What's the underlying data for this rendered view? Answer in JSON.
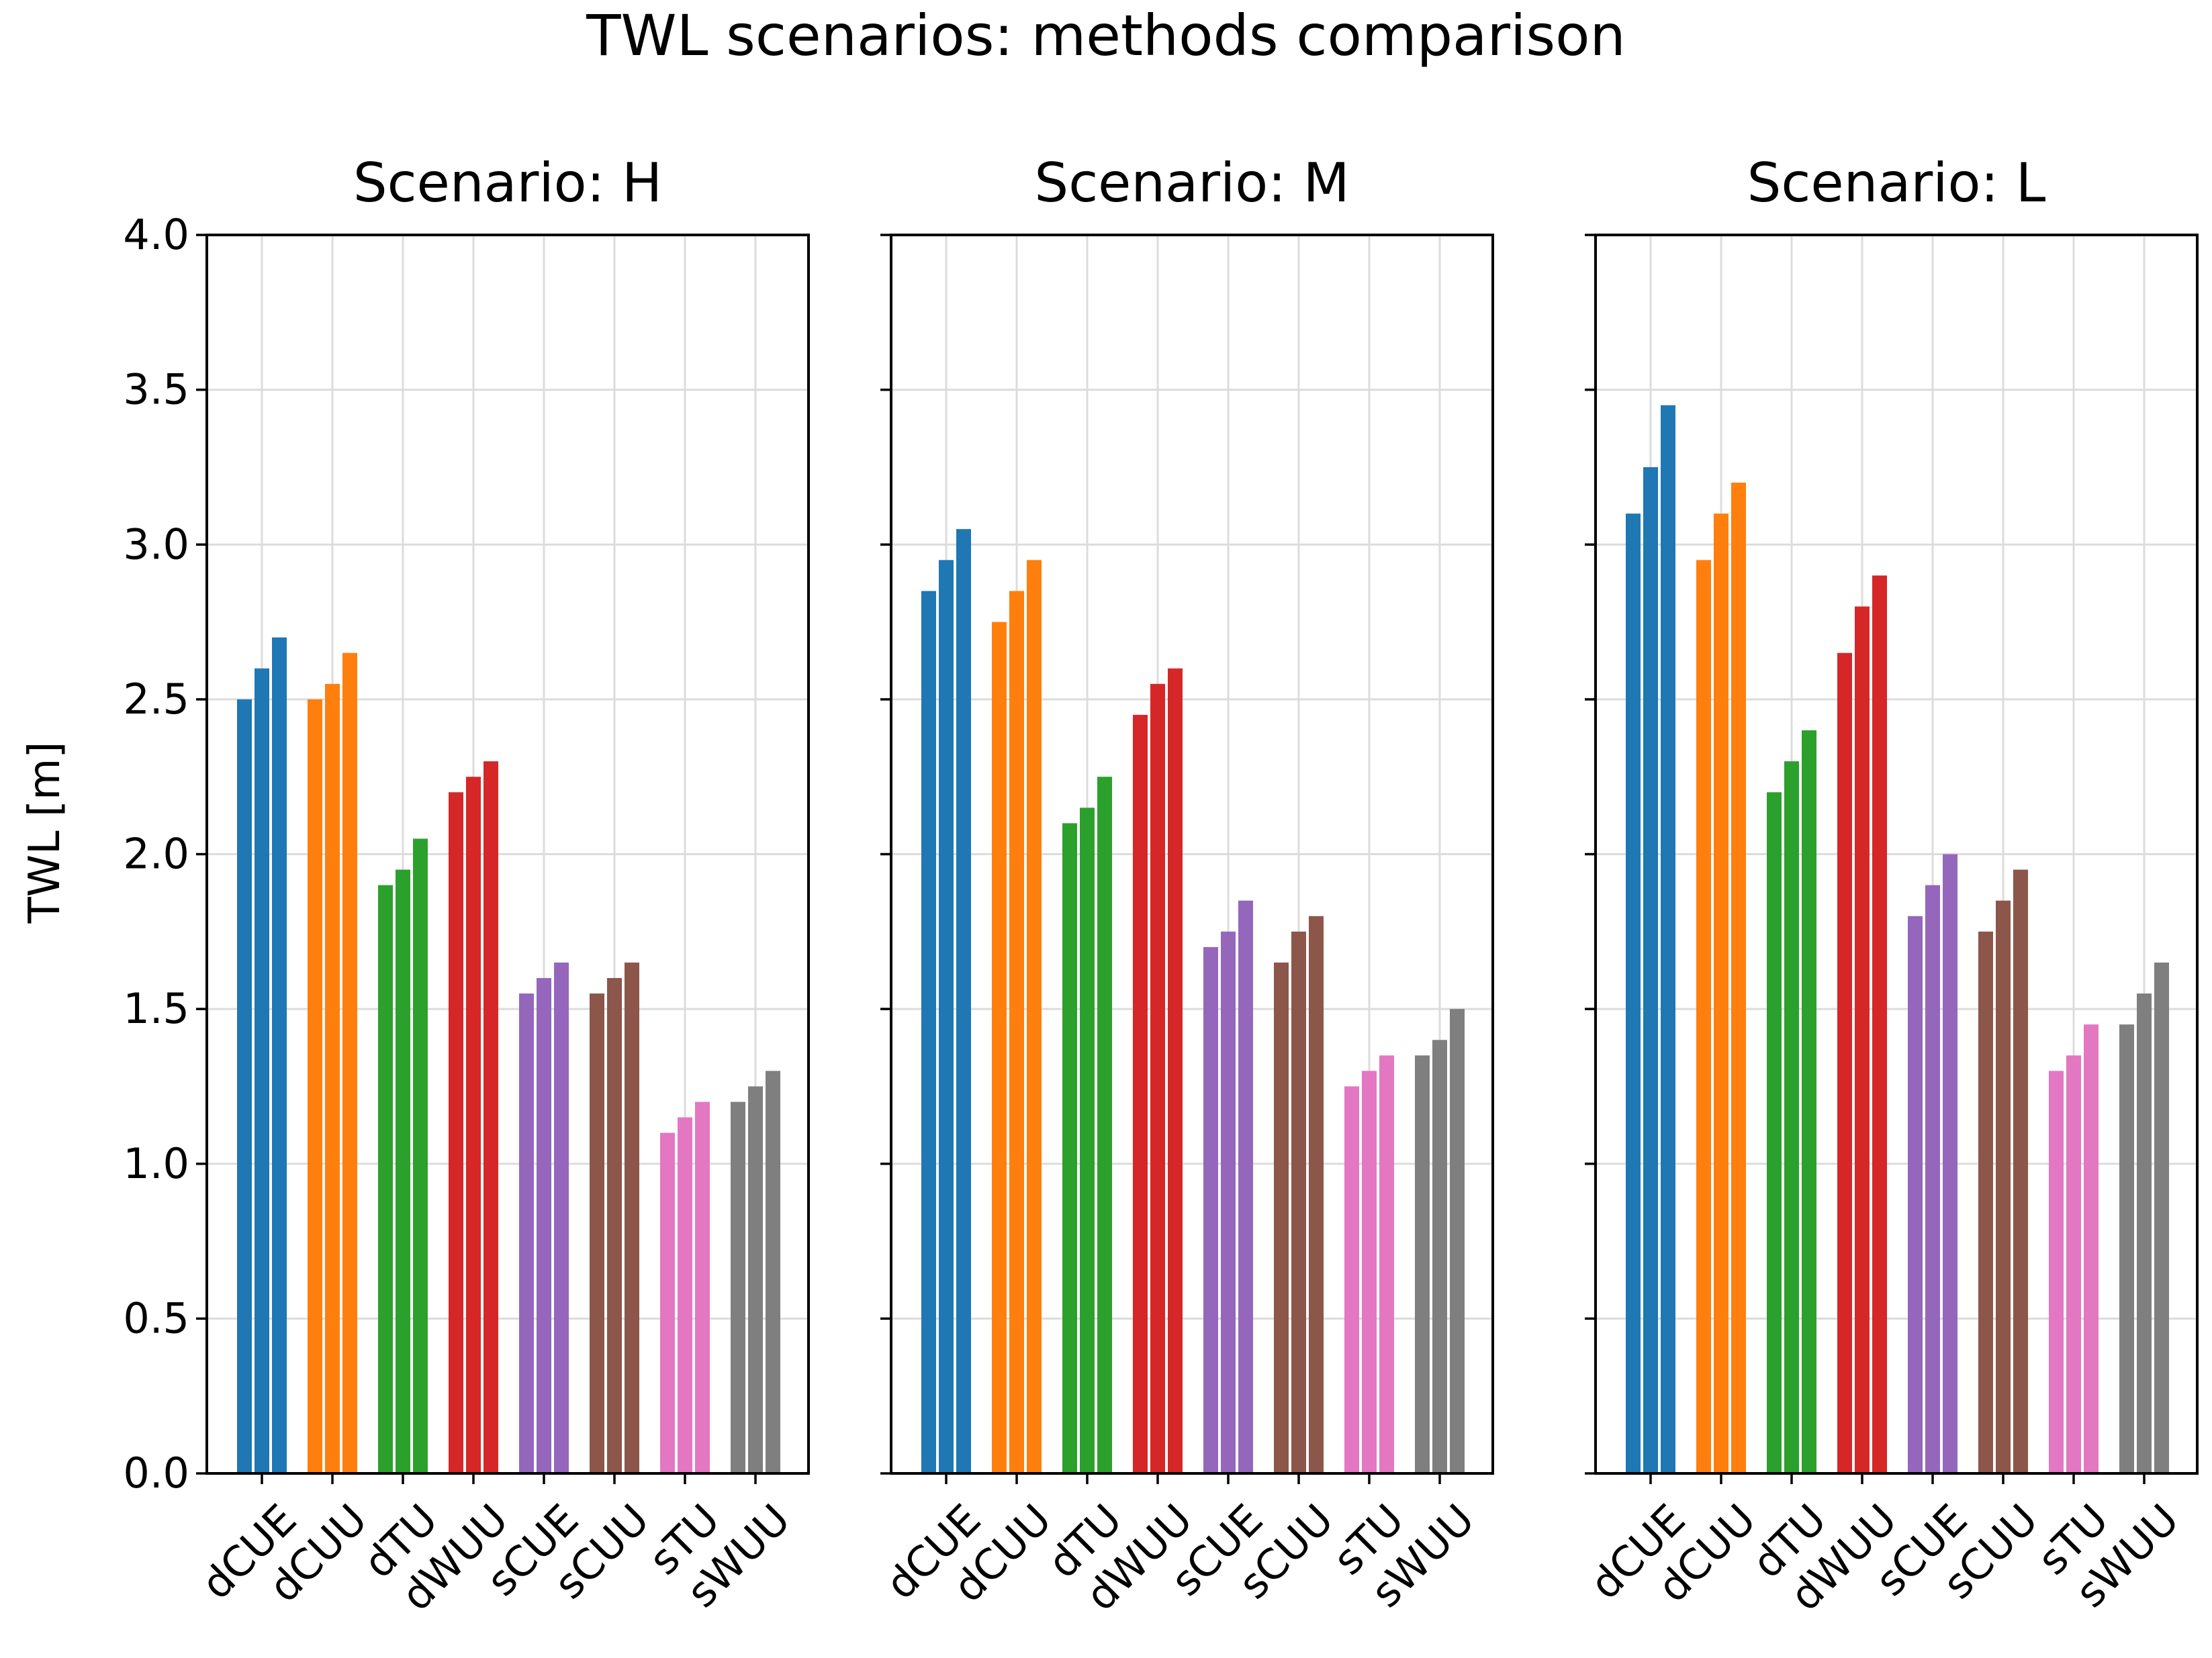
{
  "chart_data": {
    "type": "bar",
    "title": "TWL scenarios: methods comparison",
    "ylabel": "TWL [m]",
    "xlabel": "",
    "ylim": [
      0,
      4.0
    ],
    "yticks": [
      "0.0",
      "0.5",
      "1.0",
      "1.5",
      "2.0",
      "2.5",
      "3.0",
      "3.5",
      "4.0"
    ],
    "grid": true,
    "categories": [
      "dCUE",
      "dCUU",
      "dTU",
      "dWUU",
      "sCUE",
      "sCUU",
      "sTU",
      "sWUU"
    ],
    "colors": [
      "#1f77b4",
      "#ff7f0e",
      "#2ca02c",
      "#d62728",
      "#9467bd",
      "#8c564b",
      "#e377c2",
      "#7f7f7f"
    ],
    "panels": [
      {
        "title": "Scenario: H",
        "values": [
          [
            2.5,
            2.6,
            2.7
          ],
          [
            2.5,
            2.55,
            2.65
          ],
          [
            1.9,
            1.95,
            2.05
          ],
          [
            2.2,
            2.25,
            2.3
          ],
          [
            1.55,
            1.6,
            1.65
          ],
          [
            1.55,
            1.6,
            1.65
          ],
          [
            1.1,
            1.15,
            1.2
          ],
          [
            1.2,
            1.25,
            1.3
          ]
        ]
      },
      {
        "title": "Scenario: M",
        "values": [
          [
            2.85,
            2.95,
            3.05
          ],
          [
            2.75,
            2.85,
            2.95
          ],
          [
            2.1,
            2.15,
            2.25
          ],
          [
            2.45,
            2.55,
            2.6
          ],
          [
            1.7,
            1.75,
            1.85
          ],
          [
            1.65,
            1.75,
            1.8
          ],
          [
            1.25,
            1.3,
            1.35
          ],
          [
            1.35,
            1.4,
            1.5
          ]
        ]
      },
      {
        "title": "Scenario: L",
        "values": [
          [
            3.1,
            3.25,
            3.45
          ],
          [
            2.95,
            3.1,
            3.2
          ],
          [
            2.2,
            2.3,
            2.4
          ],
          [
            2.65,
            2.8,
            2.9
          ],
          [
            1.8,
            1.9,
            2.0
          ],
          [
            1.75,
            1.85,
            1.95
          ],
          [
            1.3,
            1.35,
            1.45
          ],
          [
            1.45,
            1.55,
            1.65
          ]
        ]
      }
    ]
  }
}
